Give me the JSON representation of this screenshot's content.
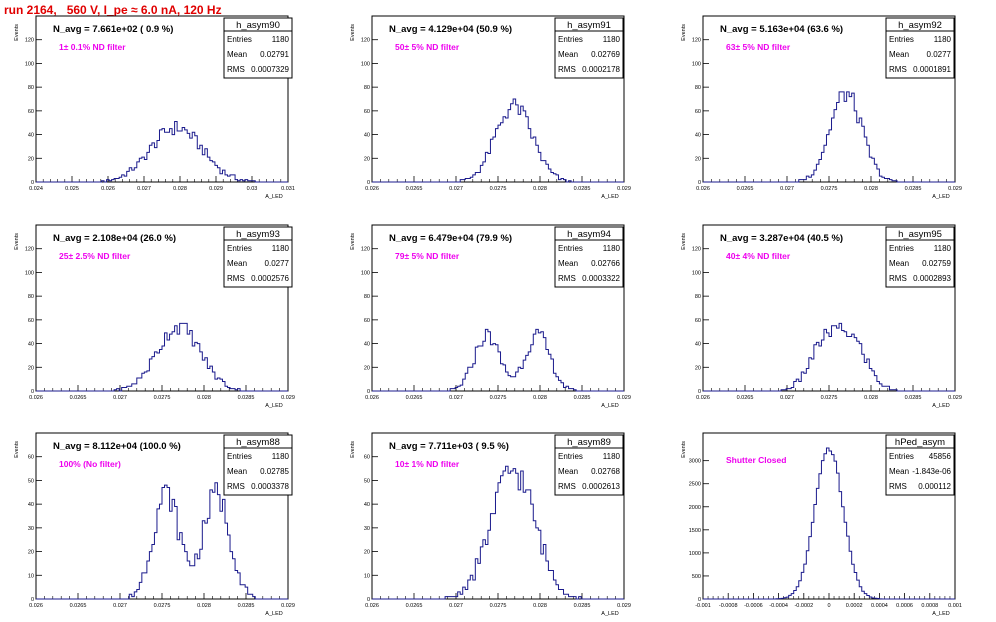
{
  "page_title": "run 2164,   560 V, I_pe ≈ 6.0 nA, 120 Hz",
  "colors": {
    "histogram_line": "#1a1a8c",
    "title_red": "#e00000",
    "annotation_magenta": "#ee00ee",
    "axis": "#000000"
  },
  "common": {
    "ylabel": "Events",
    "xlabel": "A_LED",
    "stat_labels": [
      "Entries",
      "Mean",
      "RMS"
    ]
  },
  "chart_data": [
    {
      "type": "histogram",
      "name": "h_asym90",
      "headline": "N_avg = 7.661e+02 ( 0.9 %)",
      "annotation": "1± 0.1% ND filter",
      "stats": {
        "entries": "1180",
        "mean": "0.02791",
        "rms": "0.0007329"
      },
      "xlim": [
        0.024,
        0.031
      ],
      "ylim": [
        0,
        140
      ],
      "xticks": [
        "0.024",
        "0.025",
        "0.026",
        "0.027",
        "0.028",
        "0.029",
        "0.03",
        "0.031"
      ],
      "yticks": [
        "0",
        "20",
        "40",
        "60",
        "80",
        "100",
        "120"
      ],
      "mean": 0.02791,
      "rms": 0.0007329,
      "entries": 1180,
      "bin_width": 7e-05,
      "peaks": [
        {
          "mu": 0.0279,
          "sigma": 0.00072,
          "amp": 1.0
        }
      ]
    },
    {
      "type": "histogram",
      "name": "h_asym91",
      "headline": "N_avg = 4.129e+04 (50.9 %)",
      "annotation": "50± 5% ND filter",
      "stats": {
        "entries": "1180",
        "mean": "0.02769",
        "rms": "0.0002178"
      },
      "xlim": [
        0.026,
        0.029
      ],
      "ylim": [
        0,
        140
      ],
      "xticks": [
        "0.026",
        "0.0265",
        "0.027",
        "0.0275",
        "0.028",
        "0.0285",
        "0.029"
      ],
      "yticks": [
        "0",
        "20",
        "40",
        "60",
        "80",
        "100",
        "120"
      ],
      "mean": 0.02769,
      "rms": 0.0002178,
      "entries": 1180,
      "bin_width": 3e-05,
      "peaks": [
        {
          "mu": 0.02769,
          "sigma": 0.00022,
          "amp": 1.0
        }
      ]
    },
    {
      "type": "histogram",
      "name": "h_asym92",
      "headline": "N_avg = 5.163e+04 (63.6 %)",
      "annotation": "63± 5% ND filter",
      "stats": {
        "entries": "1180",
        "mean": "0.0277",
        "rms": "0.0001891"
      },
      "xlim": [
        0.026,
        0.029
      ],
      "ylim": [
        0,
        140
      ],
      "xticks": [
        "0.026",
        "0.0265",
        "0.027",
        "0.0275",
        "0.028",
        "0.0285",
        "0.029"
      ],
      "yticks": [
        "0",
        "20",
        "40",
        "60",
        "80",
        "100",
        "120"
      ],
      "mean": 0.0277,
      "rms": 0.0001891,
      "entries": 1180,
      "bin_width": 3e-05,
      "peaks": [
        {
          "mu": 0.0277,
          "sigma": 0.00019,
          "amp": 1.0
        }
      ]
    },
    {
      "type": "histogram",
      "name": "h_asym93",
      "headline": "N_avg = 2.108e+04 (26.0 %)",
      "annotation": "25± 2.5% ND filter",
      "stats": {
        "entries": "1180",
        "mean": "0.0277",
        "rms": "0.0002576"
      },
      "xlim": [
        0.026,
        0.029
      ],
      "ylim": [
        0,
        140
      ],
      "xticks": [
        "0.026",
        "0.0265",
        "0.027",
        "0.0275",
        "0.028",
        "0.0285",
        "0.029"
      ],
      "yticks": [
        "0",
        "20",
        "40",
        "60",
        "80",
        "100",
        "120"
      ],
      "mean": 0.0277,
      "rms": 0.0002576,
      "entries": 1180,
      "bin_width": 3e-05,
      "peaks": [
        {
          "mu": 0.0277,
          "sigma": 0.00026,
          "amp": 1.0
        }
      ]
    },
    {
      "type": "histogram",
      "name": "h_asym94",
      "headline": "N_avg = 6.479e+04 (79.9 %)",
      "annotation": "79± 5% ND filter",
      "stats": {
        "entries": "1180",
        "mean": "0.02766",
        "rms": "0.0003322"
      },
      "xlim": [
        0.026,
        0.029
      ],
      "ylim": [
        0,
        140
      ],
      "xticks": [
        "0.026",
        "0.0265",
        "0.027",
        "0.0275",
        "0.028",
        "0.0285",
        "0.029"
      ],
      "yticks": [
        "0",
        "20",
        "40",
        "60",
        "80",
        "100",
        "120"
      ],
      "mean": 0.02766,
      "rms": 0.0003322,
      "entries": 1180,
      "bin_width": 3e-05,
      "peaks": [
        {
          "mu": 0.02737,
          "sigma": 0.00015,
          "amp": 0.5
        },
        {
          "mu": 0.02797,
          "sigma": 0.00015,
          "amp": 0.5
        }
      ]
    },
    {
      "type": "histogram",
      "name": "h_asym95",
      "headline": "N_avg = 3.287e+04 (40.5 %)",
      "annotation": "40± 4% ND filter",
      "stats": {
        "entries": "1180",
        "mean": "0.02759",
        "rms": "0.0002893"
      },
      "xlim": [
        0.026,
        0.029
      ],
      "ylim": [
        0,
        140
      ],
      "xticks": [
        "0.026",
        "0.0265",
        "0.027",
        "0.0275",
        "0.028",
        "0.0285",
        "0.029"
      ],
      "yticks": [
        "0",
        "20",
        "40",
        "60",
        "80",
        "100",
        "120"
      ],
      "mean": 0.02759,
      "rms": 0.0002893,
      "entries": 1180,
      "bin_width": 3e-05,
      "peaks": [
        {
          "mu": 0.02745,
          "sigma": 0.00018,
          "amp": 0.5
        },
        {
          "mu": 0.02778,
          "sigma": 0.00018,
          "amp": 0.5
        }
      ]
    },
    {
      "type": "histogram",
      "name": "h_asym88",
      "headline": "N_avg = 8.112e+04 (100.0 %)",
      "annotation": "100% (No filter)",
      "stats": {
        "entries": "1180",
        "mean": "0.02785",
        "rms": "0.0003378"
      },
      "xlim": [
        0.026,
        0.029
      ],
      "ylim": [
        0,
        70
      ],
      "xticks": [
        "0.026",
        "0.0265",
        "0.027",
        "0.0275",
        "0.028",
        "0.0285",
        "0.029"
      ],
      "yticks": [
        "0",
        "10",
        "20",
        "30",
        "40",
        "50",
        "60"
      ],
      "mean": 0.02785,
      "rms": 0.0003378,
      "entries": 1180,
      "bin_width": 3e-05,
      "peaks": [
        {
          "mu": 0.02755,
          "sigma": 0.00016,
          "amp": 0.5
        },
        {
          "mu": 0.02815,
          "sigma": 0.00016,
          "amp": 0.5
        }
      ]
    },
    {
      "type": "histogram",
      "name": "h_asym89",
      "headline": "N_avg = 7.711e+03 ( 9.5 %)",
      "annotation": "10± 1% ND filter",
      "stats": {
        "entries": "1180",
        "mean": "0.02768",
        "rms": "0.0002613"
      },
      "xlim": [
        0.026,
        0.029
      ],
      "ylim": [
        0,
        140
      ],
      "xticks": [
        "0.026",
        "0.0265",
        "0.027",
        "0.0275",
        "0.028",
        "0.0285",
        "0.029"
      ],
      "yticks": [
        "0",
        "10",
        "20",
        "30",
        "40",
        "50",
        "60"
      ],
      "yticks_values": [
        0,
        10,
        20,
        30,
        40,
        50,
        60
      ],
      "ylim_override": [
        0,
        70
      ],
      "mean": 0.02768,
      "rms": 0.0002613,
      "entries": 1180,
      "bin_width": 3e-05,
      "peaks": [
        {
          "mu": 0.02768,
          "sigma": 0.00026,
          "amp": 1.0
        }
      ]
    },
    {
      "type": "histogram",
      "name": "hPed_asym",
      "headline": "",
      "annotation": "Shutter Closed",
      "stats": {
        "entries": "45856",
        "mean": "-1.843e-06",
        "rms": "0.000112"
      },
      "xlim": [
        -0.001,
        0.001
      ],
      "ylim": [
        0,
        3600
      ],
      "xticks": [
        "-0.001",
        "-0.0008",
        "-0.0006",
        "-0.0004",
        "-0.0002",
        "0",
        "0.0002",
        "0.0004",
        "0.0006",
        "0.0008",
        "0.001"
      ],
      "yticks": [
        "0",
        "500",
        "1000",
        "1500",
        "2000",
        "2500",
        "3000"
      ],
      "mean": -1.843e-06,
      "rms": 0.000112,
      "entries": 45856,
      "bin_width": 2e-05,
      "peaks": [
        {
          "mu": 0,
          "sigma": 0.000112,
          "amp": 1.0
        }
      ]
    }
  ]
}
